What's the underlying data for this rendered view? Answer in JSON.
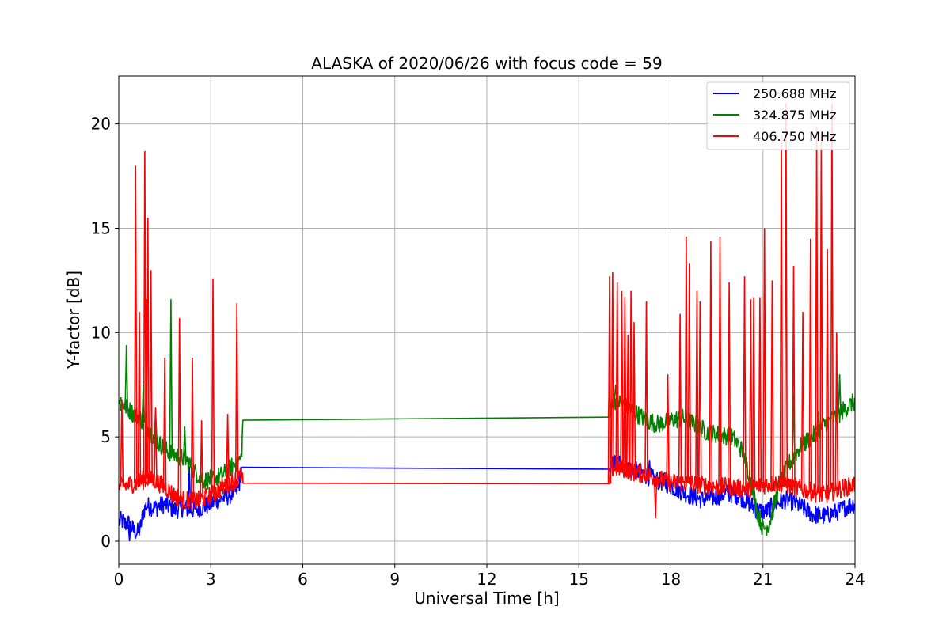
{
  "chart_data": {
    "type": "line",
    "title": "ALASKA of 2020/06/26 with focus code = 59",
    "xlabel": "Universal Time [h]",
    "ylabel": "Y-factor [dB]",
    "xlim": [
      0,
      24
    ],
    "ylim": [
      -1.1,
      22.3
    ],
    "xticks": [
      0,
      3,
      6,
      9,
      12,
      15,
      18,
      21,
      24
    ],
    "yticks": [
      0,
      5,
      10,
      15,
      20
    ],
    "grid": true,
    "legend_position": "upper-right",
    "series": [
      {
        "name": "250.688 MHz",
        "color": "#0000ff",
        "x": [
          0,
          0.1,
          0.2,
          0.3,
          0.5,
          0.6,
          0.7,
          0.8,
          0.9,
          1.2,
          1.5,
          1.8,
          2.1,
          2.4,
          2.7,
          3.0,
          3.3,
          3.6,
          3.9,
          4.0,
          16.0,
          16.1,
          16.3,
          16.6,
          17.0,
          17.4,
          17.8,
          18.2,
          18.6,
          19.0,
          19.4,
          19.8,
          20.2,
          20.5,
          20.8,
          21.1,
          21.4,
          21.8,
          22.2,
          22.6,
          23.0,
          23.4,
          23.8,
          24.0
        ],
        "y": [
          0.9,
          1.0,
          0.8,
          0.9,
          0.5,
          0.4,
          0.6,
          1.4,
          1.7,
          1.6,
          1.8,
          1.5,
          1.6,
          1.5,
          1.6,
          1.8,
          2.0,
          2.2,
          2.5,
          3.4,
          3.45,
          3.7,
          3.8,
          3.5,
          3.3,
          3.0,
          2.8,
          2.5,
          2.2,
          2.0,
          2.1,
          2.3,
          2.2,
          1.9,
          1.5,
          1.4,
          1.8,
          2.0,
          1.7,
          1.3,
          1.2,
          1.4,
          1.7,
          1.8
        ],
        "spikes": [
          [
            0.35,
            0.0
          ],
          [
            2.3,
            3.6
          ],
          [
            17.3,
            3.9
          ]
        ]
      },
      {
        "name": "324.875 MHz",
        "color": "#008000",
        "x": [
          0,
          0.2,
          0.4,
          0.7,
          1.0,
          1.3,
          1.6,
          1.9,
          2.2,
          2.5,
          2.8,
          3.1,
          3.4,
          3.7,
          4.0,
          4.05,
          16.0,
          16.1,
          16.4,
          16.8,
          17.2,
          17.6,
          18.0,
          18.4,
          18.8,
          19.2,
          19.6,
          20.0,
          20.3,
          20.6,
          20.8,
          21.0,
          21.2,
          21.5,
          21.8,
          22.2,
          22.6,
          23.0,
          23.4,
          23.8,
          24.0
        ],
        "y": [
          6.6,
          6.5,
          6.2,
          5.9,
          5.3,
          4.7,
          4.3,
          4.1,
          3.9,
          3.3,
          2.9,
          3.0,
          3.2,
          3.6,
          4.0,
          5.85,
          5.95,
          6.8,
          6.6,
          6.2,
          5.8,
          5.6,
          5.8,
          5.9,
          5.6,
          5.2,
          5.1,
          5.0,
          4.4,
          3.0,
          1.5,
          0.6,
          0.8,
          2.5,
          3.6,
          4.5,
          5.0,
          5.6,
          6.0,
          6.5,
          6.7
        ],
        "spikes": [
          [
            0.07,
            6.9
          ],
          [
            0.25,
            9.4
          ],
          [
            0.8,
            7.5
          ],
          [
            1.2,
            6.3
          ],
          [
            1.7,
            11.6
          ],
          [
            2.15,
            5.5
          ],
          [
            16.0,
            7.8
          ],
          [
            16.2,
            7.5
          ],
          [
            22.0,
            7.0
          ],
          [
            22.8,
            6.2
          ],
          [
            23.5,
            8.0
          ]
        ]
      },
      {
        "name": "406.750 MHz",
        "color": "#ff0000",
        "x": [
          0,
          0.3,
          0.6,
          0.9,
          1.2,
          1.5,
          1.8,
          2.1,
          2.4,
          2.7,
          3.0,
          3.3,
          3.6,
          3.9,
          4.0,
          4.05,
          16.0,
          16.1,
          16.4,
          16.8,
          17.2,
          17.6,
          18.0,
          18.5,
          19.0,
          19.5,
          20.0,
          20.5,
          21.0,
          21.5,
          22.0,
          22.5,
          23.0,
          23.5,
          24.0
        ],
        "y": [
          2.6,
          2.7,
          2.8,
          3.0,
          2.9,
          2.6,
          2.2,
          2.0,
          1.9,
          2.0,
          2.2,
          2.5,
          2.8,
          3.0,
          3.2,
          2.75,
          2.75,
          3.5,
          3.5,
          3.3,
          3.2,
          3.0,
          2.8,
          2.8,
          2.7,
          2.6,
          2.6,
          2.5,
          2.7,
          2.8,
          2.6,
          2.4,
          2.2,
          2.5,
          2.7
        ],
        "spikes": [
          [
            0.1,
            6.8
          ],
          [
            0.55,
            18.0
          ],
          [
            0.67,
            11.0
          ],
          [
            0.85,
            18.7
          ],
          [
            0.9,
            11.6
          ],
          [
            0.95,
            15.5
          ],
          [
            1.05,
            13.0
          ],
          [
            1.2,
            6.4
          ],
          [
            1.5,
            8.8
          ],
          [
            1.98,
            10.7
          ],
          [
            2.4,
            8.8
          ],
          [
            2.7,
            5.8
          ],
          [
            3.07,
            12.6
          ],
          [
            3.55,
            6.1
          ],
          [
            3.85,
            11.4
          ],
          [
            16.0,
            12.7
          ],
          [
            16.1,
            12.9
          ],
          [
            16.25,
            12.4
          ],
          [
            16.4,
            12.0
          ],
          [
            16.5,
            11.7
          ],
          [
            16.6,
            9.9
          ],
          [
            16.7,
            12.0
          ],
          [
            16.8,
            10.5
          ],
          [
            17.2,
            11.5
          ],
          [
            17.5,
            1.1
          ],
          [
            17.9,
            8.0
          ],
          [
            18.3,
            10.9
          ],
          [
            18.5,
            14.6
          ],
          [
            18.6,
            13.3
          ],
          [
            18.85,
            12.0
          ],
          [
            18.95,
            11.5
          ],
          [
            19.3,
            14.4
          ],
          [
            19.6,
            14.6
          ],
          [
            19.9,
            12.4
          ],
          [
            20.4,
            12.7
          ],
          [
            20.6,
            11.6
          ],
          [
            20.7,
            11.7
          ],
          [
            20.9,
            11.7
          ],
          [
            21.05,
            15.0
          ],
          [
            21.3,
            12.5
          ],
          [
            21.6,
            19.5
          ],
          [
            21.75,
            21.0
          ],
          [
            22.0,
            13.2
          ],
          [
            22.3,
            11.0
          ],
          [
            22.55,
            14.5
          ],
          [
            22.75,
            19.9
          ],
          [
            22.9,
            19.5
          ],
          [
            23.1,
            14.0
          ],
          [
            23.25,
            21.0
          ],
          [
            23.4,
            10.0
          ]
        ]
      }
    ]
  }
}
